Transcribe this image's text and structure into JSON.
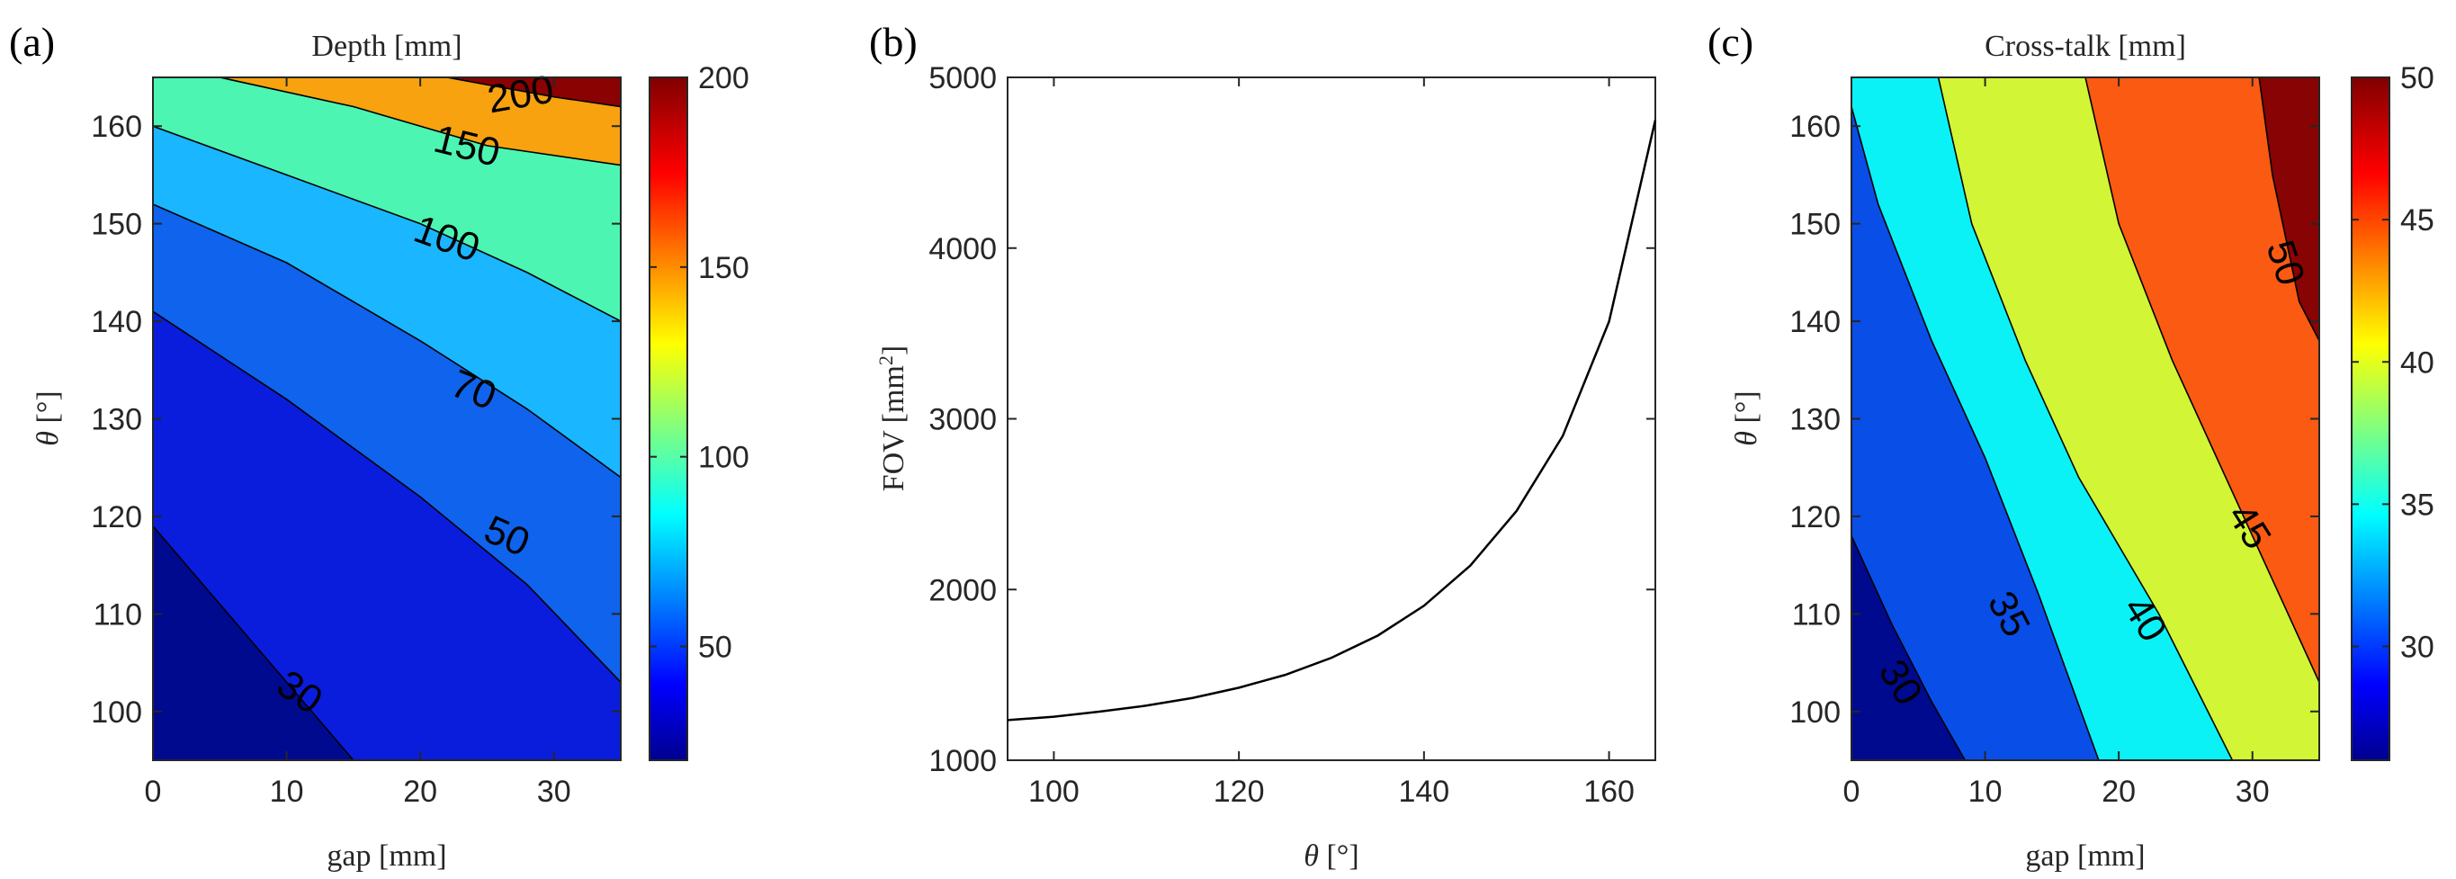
{
  "chart_data": [
    {
      "panel": "(a)",
      "type": "heatmap",
      "title": "Depth [mm]",
      "xlabel": "gap [mm]",
      "ylabel": "θ [°]",
      "xlim": [
        0,
        35
      ],
      "ylim": [
        95,
        165
      ],
      "xticks": [
        "0",
        "10",
        "20",
        "30"
      ],
      "yticks": [
        "100",
        "110",
        "120",
        "130",
        "140",
        "150",
        "160"
      ],
      "contour_levels": [
        30,
        50,
        70,
        100,
        150,
        200
      ],
      "contour_lines": [
        {
          "level": 30,
          "points": [
            [
              0,
              119
            ],
            [
              5,
              111
            ],
            [
              10,
              103
            ],
            [
              15,
              95
            ]
          ]
        },
        {
          "level": 50,
          "points": [
            [
              0,
              141
            ],
            [
              10,
              132
            ],
            [
              20,
              122
            ],
            [
              28,
              113
            ],
            [
              35,
              103
            ]
          ]
        },
        {
          "level": 70,
          "points": [
            [
              0,
              152
            ],
            [
              10,
              146
            ],
            [
              20,
              138
            ],
            [
              28,
              131
            ],
            [
              35,
              124
            ]
          ]
        },
        {
          "level": 100,
          "points": [
            [
              0,
              160
            ],
            [
              10,
              155
            ],
            [
              20,
              150
            ],
            [
              28,
              145
            ],
            [
              35,
              140
            ]
          ]
        },
        {
          "level": 150,
          "points": [
            [
              5,
              165
            ],
            [
              15,
              162
            ],
            [
              25,
              158
            ],
            [
              35,
              156
            ]
          ]
        },
        {
          "level": 200,
          "points": [
            [
              22,
              165
            ],
            [
              30,
              163
            ],
            [
              35,
              162
            ]
          ]
        }
      ],
      "contour_labels": [
        {
          "text": "30",
          "x": 11,
          "y": 102,
          "rotate": 34
        },
        {
          "text": "50",
          "x": 26.5,
          "y": 118,
          "rotate": 24
        },
        {
          "text": "70",
          "x": 24,
          "y": 133,
          "rotate": 22
        },
        {
          "text": "100",
          "x": 22,
          "y": 148.5,
          "rotate": 20
        },
        {
          "text": "150",
          "x": 23.5,
          "y": 158,
          "rotate": 14
        },
        {
          "text": "200",
          "x": 27.5,
          "y": 163.3,
          "rotate": -10
        }
      ],
      "colorbar": {
        "min": 20,
        "max": 200,
        "ticks": [
          "50",
          "100",
          "150",
          "200"
        ],
        "tick_values": [
          50,
          100,
          150,
          200
        ]
      },
      "region_colors": [
        "#000a8f",
        "#0a1ddc",
        "#0f63ec",
        "#1ab6ff",
        "#4cf5b2",
        "#f7a20e",
        "#8a0202"
      ]
    },
    {
      "panel": "(b)",
      "type": "line",
      "xlabel": "θ [°]",
      "ylabel": "FOV [mm²]",
      "xlim": [
        95,
        165
      ],
      "ylim": [
        1000,
        5000
      ],
      "xticks": [
        "100",
        "120",
        "140",
        "160"
      ],
      "yticks": [
        "1000",
        "2000",
        "3000",
        "4000",
        "5000"
      ],
      "series": [
        {
          "x": [
            95,
            100,
            105,
            110,
            115,
            120,
            125,
            130,
            135,
            140,
            145,
            150,
            155,
            160,
            165
          ],
          "values": [
            1235,
            1255,
            1285,
            1320,
            1365,
            1425,
            1500,
            1600,
            1730,
            1905,
            2140,
            2460,
            2900,
            3570,
            4750
          ]
        }
      ]
    },
    {
      "panel": "(c)",
      "type": "heatmap",
      "title": "Cross-talk [mm]",
      "xlabel": "gap [mm]",
      "ylabel": "θ [°]",
      "xlim": [
        0,
        35
      ],
      "ylim": [
        95,
        165
      ],
      "xticks": [
        "0",
        "10",
        "20",
        "30"
      ],
      "yticks": [
        "100",
        "110",
        "120",
        "130",
        "140",
        "150",
        "160"
      ],
      "contour_levels": [
        30,
        35,
        40,
        45,
        50
      ],
      "contour_lines": [
        {
          "level": 30,
          "points": [
            [
              0,
              118
            ],
            [
              3,
              109
            ],
            [
              6,
              101
            ],
            [
              8.5,
              95
            ]
          ]
        },
        {
          "level": 35,
          "points": [
            [
              0,
              162
            ],
            [
              2,
              152
            ],
            [
              6,
              138
            ],
            [
              10,
              126
            ],
            [
              14,
              112
            ],
            [
              18.5,
              95
            ]
          ]
        },
        {
          "level": 40,
          "points": [
            [
              6.5,
              165
            ],
            [
              9,
              150
            ],
            [
              13,
              136
            ],
            [
              17,
              124
            ],
            [
              23,
              110
            ],
            [
              28.5,
              95
            ]
          ]
        },
        {
          "level": 45,
          "points": [
            [
              17.5,
              165
            ],
            [
              20,
              150
            ],
            [
              24,
              136
            ],
            [
              28,
              124
            ],
            [
              32,
              112
            ],
            [
              35,
              103
            ]
          ]
        },
        {
          "level": 50,
          "points": [
            [
              30.5,
              165
            ],
            [
              31.5,
              155
            ],
            [
              33.5,
              142
            ],
            [
              35,
              138
            ]
          ]
        }
      ],
      "contour_labels": [
        {
          "text": "30",
          "x": 3.7,
          "y": 103,
          "rotate": 58
        },
        {
          "text": "35",
          "x": 11.8,
          "y": 110,
          "rotate": 62
        },
        {
          "text": "40",
          "x": 22,
          "y": 109.5,
          "rotate": 58
        },
        {
          "text": "45",
          "x": 29.8,
          "y": 119,
          "rotate": 58
        },
        {
          "text": "50",
          "x": 32.5,
          "y": 146,
          "rotate": 72
        }
      ],
      "colorbar": {
        "min": 26,
        "max": 50,
        "ticks": [
          "30",
          "35",
          "40",
          "45",
          "50"
        ],
        "tick_values": [
          30,
          35,
          40,
          45,
          50
        ]
      },
      "region_colors": [
        "#000a8f",
        "#0a4ee8",
        "#0af2f6",
        "#d2f535",
        "#fb5a12",
        "#880303"
      ]
    }
  ],
  "panels": {
    "a": {
      "letter": "(a)",
      "title": "Depth [mm]",
      "xlabel": "gap [mm]"
    },
    "b": {
      "letter": "(b)",
      "xlabel_symbol": "θ",
      "xlabel_unit": "[°]",
      "ylabel_main": "FOV [mm",
      "ylabel_sup": "2",
      "ylabel_end": "]"
    },
    "c": {
      "letter": "(c)",
      "title": "Cross-talk [mm]",
      "xlabel": "gap [mm]"
    }
  },
  "common": {
    "theta_symbol": "θ",
    "theta_unit": "[°]"
  }
}
